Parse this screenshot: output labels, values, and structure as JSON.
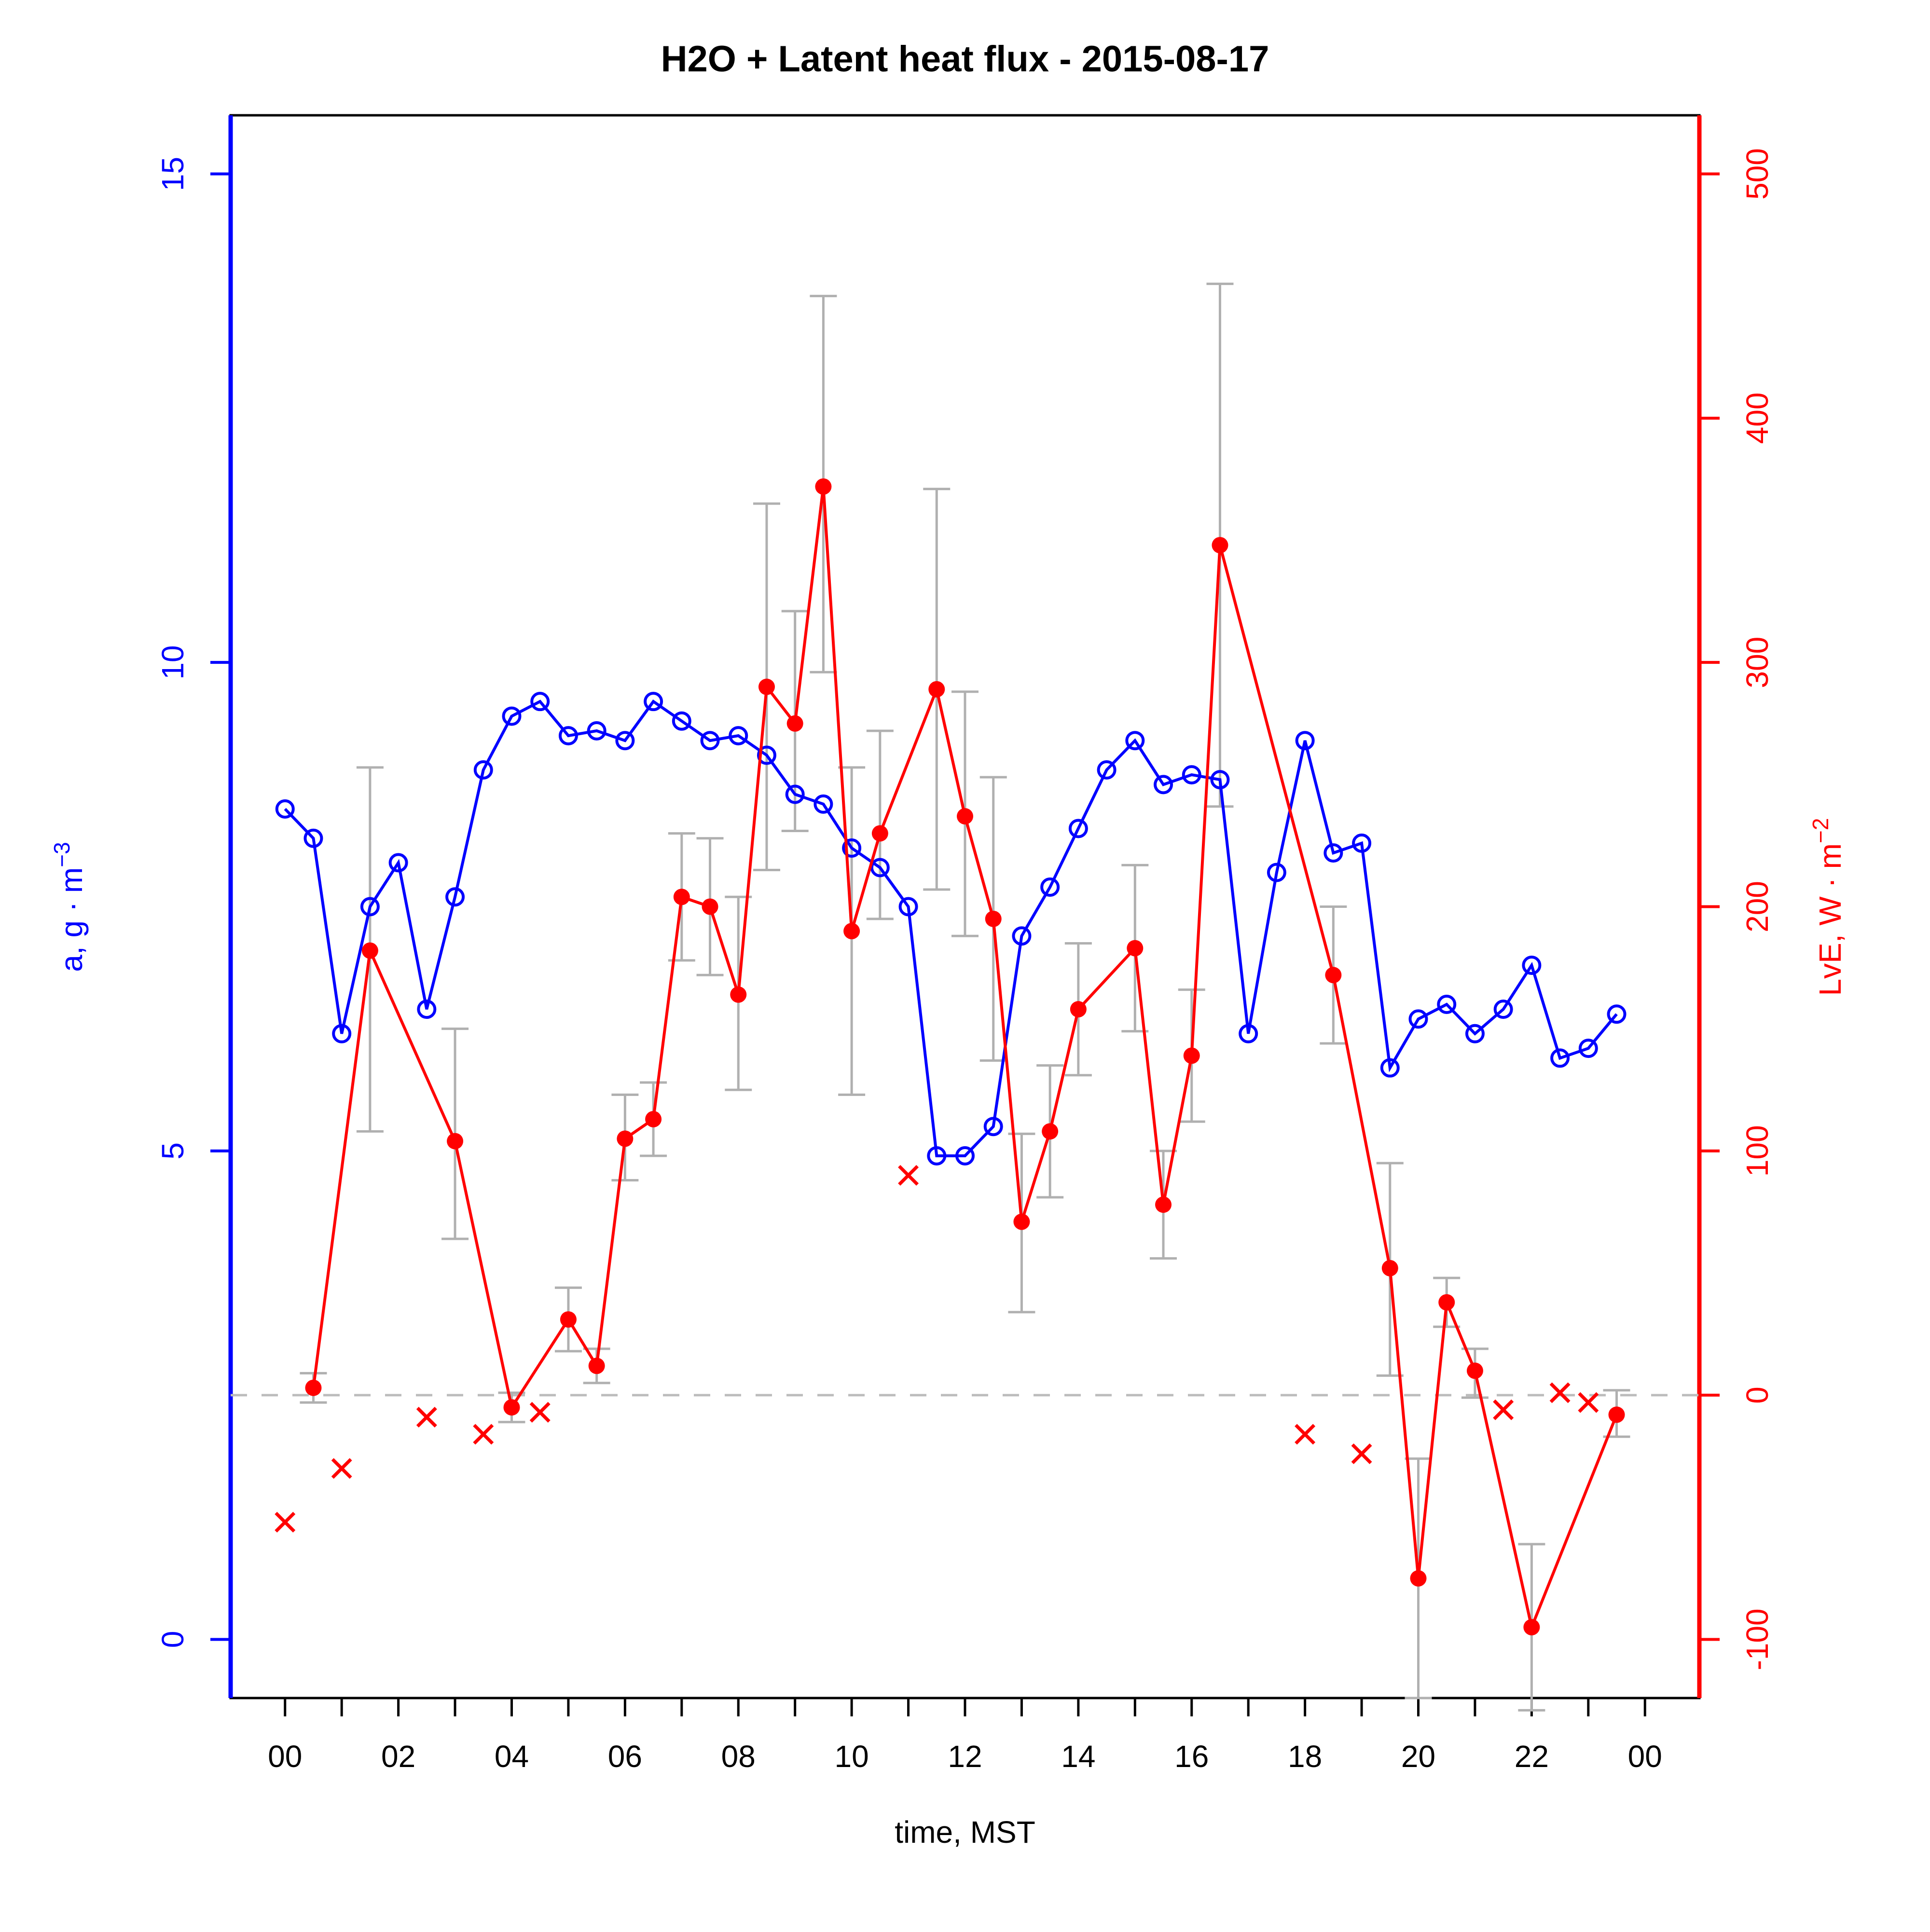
{
  "chart_data": {
    "type": "line",
    "title": "H2O + Latent heat flux -  2015-08-17",
    "xlabel": "time, MST",
    "ylabel_left_main": "a, g · m",
    "ylabel_left_sup": "−3",
    "ylabel_right_main": "LvE, W · m",
    "ylabel_right_sup": "−2",
    "colors": {
      "h2o": "#0000ff",
      "lve": "#ff0000",
      "error_bar": "#b0b0b0",
      "zero_line": "#bcbcbc",
      "frame": "#000000"
    },
    "layout_hints": {
      "grid": "off",
      "legend": "none",
      "zero_line_style": "dashed",
      "marker_h2o": "open-circle",
      "marker_lve": "filled-circle",
      "marker_rejected": "x-cross"
    },
    "axes": {
      "x": {
        "range": [
          0,
          24
        ],
        "tick_every_hours": 1,
        "label_every_hours": 2,
        "tick_labels": [
          "00",
          "02",
          "04",
          "06",
          "08",
          "10",
          "12",
          "14",
          "16",
          "18",
          "20",
          "22",
          "00"
        ]
      },
      "y_left": {
        "range": [
          0,
          15
        ],
        "ticks": [
          0,
          5,
          10,
          15
        ],
        "tick_labels": [
          "0",
          "5",
          "10",
          "15"
        ],
        "color": "#0000ff"
      },
      "y_right": {
        "range": [
          -100,
          500
        ],
        "ticks": [
          -100,
          0,
          100,
          200,
          300,
          400,
          500
        ],
        "tick_labels": [
          "-100",
          "0",
          "100",
          "200",
          "300",
          "400",
          "500"
        ],
        "color": "#ff0000"
      }
    },
    "zero_line_right_value": 0,
    "series": [
      {
        "name": "h2o-absolute-humidity",
        "axis": "left",
        "color": "#0000ff",
        "marker": "open-circle",
        "x_hours": [
          0,
          0.5,
          1,
          1.5,
          2,
          2.5,
          3,
          3.5,
          4,
          4.5,
          5,
          5.5,
          6,
          6.5,
          7,
          7.5,
          8,
          8.5,
          9,
          9.5,
          10,
          10.5,
          11,
          11.5,
          12,
          12.5,
          13,
          13.5,
          14,
          14.5,
          15,
          15.5,
          16,
          16.5,
          17,
          17.5,
          18,
          18.5,
          19,
          19.5,
          20,
          20.5,
          21,
          21.5,
          22,
          22.5,
          23,
          23.5
        ],
        "values": [
          8.5,
          8.2,
          6.2,
          7.5,
          7.95,
          6.45,
          7.6,
          8.9,
          9.45,
          9.6,
          9.25,
          9.3,
          9.2,
          9.6,
          9.4,
          9.2,
          9.25,
          9.05,
          8.65,
          8.55,
          8.1,
          7.9,
          7.5,
          4.95,
          4.95,
          5.25,
          7.2,
          7.7,
          8.3,
          8.9,
          9.2,
          8.75,
          8.85,
          8.8,
          6.2,
          7.85,
          9.2,
          8.05,
          8.15,
          5.85,
          6.35,
          6.5,
          6.2,
          6.45,
          6.9,
          5.95,
          6.05,
          6.4
        ]
      },
      {
        "name": "lve-latent-heat-flux",
        "axis": "right",
        "color": "#ff0000",
        "marker": "filled-circle",
        "x_hours": [
          0.5,
          1.5,
          3,
          4,
          5,
          5.5,
          6,
          6.5,
          7,
          7.5,
          8,
          8.5,
          9,
          9.5,
          10,
          10.5,
          11.5,
          12,
          12.5,
          13,
          13.5,
          14,
          15,
          15.5,
          16,
          16.5,
          18.5,
          19.5,
          20,
          20.5,
          21,
          22,
          23.5
        ],
        "values": [
          3,
          182,
          104,
          -5,
          31,
          12,
          105,
          113,
          204,
          200,
          164,
          290,
          275,
          372,
          190,
          230,
          289,
          237,
          195,
          71,
          108,
          158,
          183,
          78,
          139,
          348,
          172,
          52,
          -75,
          38,
          10,
          -95,
          -8
        ],
        "err_low": [
          -3,
          108,
          64,
          -11,
          18,
          5,
          88,
          98,
          178,
          172,
          125,
          215,
          231,
          296,
          123,
          195,
          207,
          188,
          137,
          34,
          81,
          131,
          149,
          56,
          112,
          241,
          144,
          8,
          -124,
          28,
          -1,
          -129,
          -17
        ],
        "err_high": [
          9,
          257,
          150,
          1,
          44,
          19,
          123,
          128,
          230,
          228,
          204,
          365,
          321,
          450,
          257,
          272,
          371,
          288,
          253,
          107,
          135,
          185,
          217,
          100,
          166,
          455,
          200,
          95,
          -26,
          48,
          19,
          -61,
          2
        ]
      },
      {
        "name": "lve-rejected",
        "axis": "right",
        "color": "#ff0000",
        "marker": "x",
        "x_hours": [
          0,
          1,
          2.5,
          3.5,
          4.5,
          11,
          18,
          19,
          21.5,
          22.5,
          23
        ],
        "values": [
          -52,
          -30,
          -9,
          -16,
          -7,
          90,
          -16,
          -24,
          -6,
          1,
          -3
        ]
      }
    ]
  }
}
